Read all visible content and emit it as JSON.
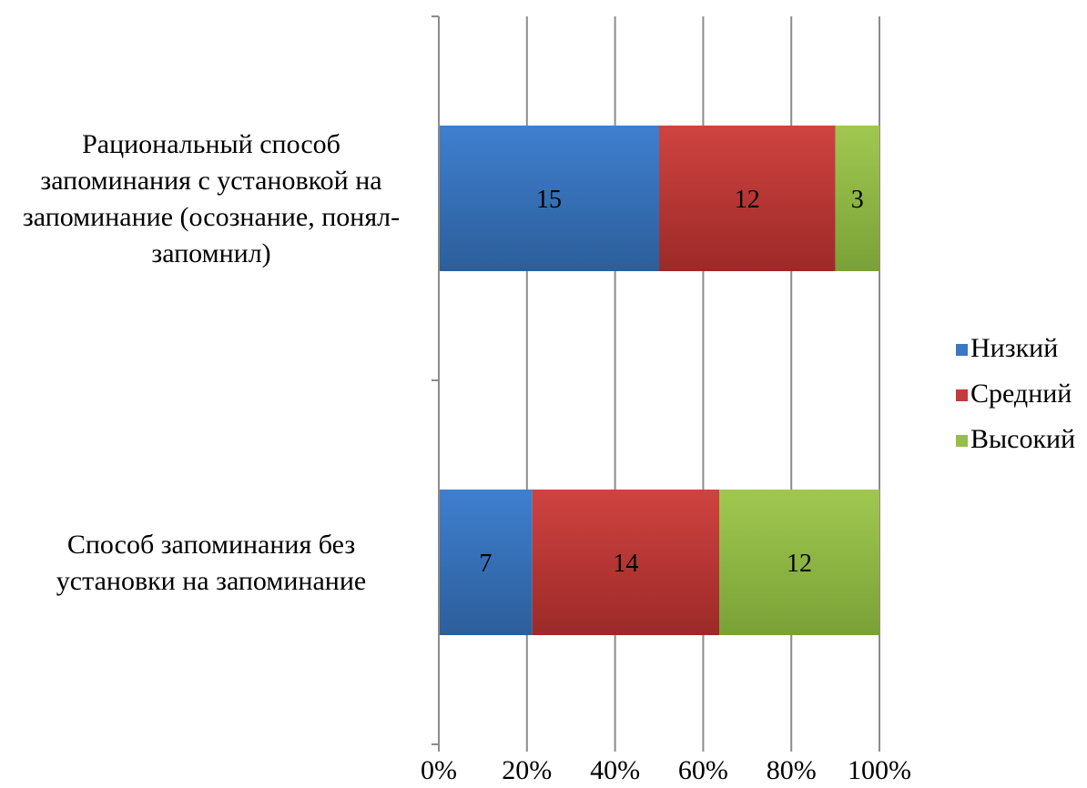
{
  "chart_data": {
    "type": "bar",
    "orientation": "horizontal",
    "stacking": "percent",
    "title": "",
    "xlabel": "",
    "ylabel": "",
    "xlim": [
      0,
      100
    ],
    "x_ticks": [
      "0%",
      "20%",
      "40%",
      "60%",
      "80%",
      "100%"
    ],
    "grid": "vertical",
    "legend_position": "right",
    "categories": [
      [
        "Рациональный  способ",
        "запоминания с установкой на",
        "запоминание (осознание, понял-",
        "запомнил)"
      ],
      [
        "Способ запоминания без",
        "установки на запоминание"
      ]
    ],
    "series": [
      {
        "name": "Низкий",
        "color": "#3b78c4",
        "values": [
          15,
          7
        ]
      },
      {
        "name": "Средний",
        "color": "#c33b3b",
        "values": [
          12,
          14
        ]
      },
      {
        "name": "Высокий",
        "color": "#96bf48",
        "values": [
          3,
          12
        ]
      }
    ]
  }
}
